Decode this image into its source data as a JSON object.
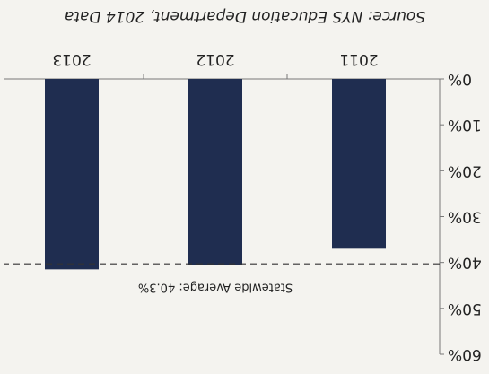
{
  "chart_data": {
    "type": "bar",
    "categories": [
      "2011",
      "2012",
      "2013"
    ],
    "values": [
      37,
      40.5,
      41.5
    ],
    "color": "#1f2d50",
    "ylim": [
      0,
      60
    ],
    "yticks": [
      {
        "value": 0,
        "label": "0%"
      },
      {
        "value": 10,
        "label": "10%"
      },
      {
        "value": 20,
        "label": "20%"
      },
      {
        "value": 30,
        "label": "30%"
      },
      {
        "value": 40,
        "label": "40%"
      },
      {
        "value": 50,
        "label": "50%"
      },
      {
        "value": 60,
        "label": "60%"
      }
    ],
    "reference": {
      "value": 40.3,
      "label": "Statewide Average: 40.3%"
    },
    "source": "Source: NYS Education Department, 2014 Data"
  }
}
